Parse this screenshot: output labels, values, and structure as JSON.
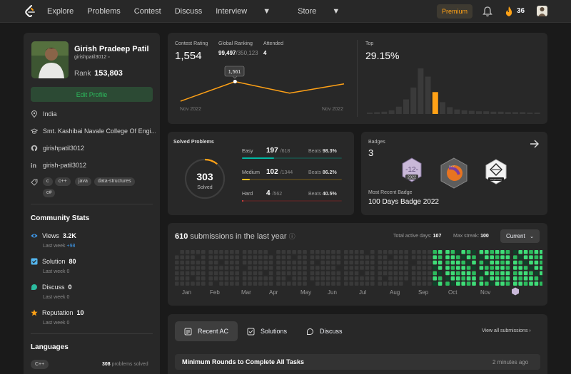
{
  "nav": {
    "links": [
      "Explore",
      "Problems",
      "Contest",
      "Discuss",
      "Interview",
      "Store"
    ],
    "premium": "Premium",
    "streak": "36",
    "icons": {
      "logo": "leetcode-logo-icon",
      "bell": "bell-icon",
      "fire": "fire-icon",
      "caret": "chevron-down-icon"
    }
  },
  "profile": {
    "name": "Girish Pradeep Patil",
    "handle": "girishpatil3012",
    "rank_label": "Rank",
    "rank": "153,803",
    "edit": "Edit Profile",
    "location": "India",
    "school": "Smt. Kashibai Navale College Of Engi...",
    "github": "girishpatil3012",
    "linkedin": "girish-patil3012",
    "skills": [
      "c",
      "c++",
      "java",
      "data-structures",
      "c#"
    ]
  },
  "community": {
    "title": "Community Stats",
    "items": [
      {
        "label": "Views",
        "value": "3.2K",
        "sub": "Last week",
        "delta": "+98",
        "color": "#3f9cf0"
      },
      {
        "label": "Solution",
        "value": "80",
        "sub": "Last week",
        "delta": "0",
        "color": "#54b7f0"
      },
      {
        "label": "Discuss",
        "value": "0",
        "sub": "Last week",
        "delta": "0",
        "color": "#2cbb9f"
      },
      {
        "label": "Reputation",
        "value": "10",
        "sub": "Last week",
        "delta": "0",
        "color": "#ffa116"
      }
    ]
  },
  "languages": {
    "title": "Languages",
    "items": [
      {
        "name": "C++",
        "count": "308",
        "suffix": "problems solved"
      }
    ]
  },
  "contest": {
    "rating_label": "Contest Rating",
    "rating": "1,554",
    "global_label": "Global Ranking",
    "global": "99,497",
    "global_total": "/350,123",
    "attended_label": "Attended",
    "attended": "4",
    "tooltip": "1,561",
    "start": "Nov 2022",
    "end": "Nov 2022",
    "top_label": "Top",
    "top": "29.15%",
    "accent": "#ffa116"
  },
  "rating_history": [
    1500,
    1561,
    1525,
    1554
  ],
  "distribution": [
    3,
    4,
    5,
    8,
    16,
    32,
    58,
    100,
    82,
    48,
    26,
    15,
    10,
    8,
    7,
    6,
    6,
    5,
    5,
    4,
    4,
    4,
    3,
    3
  ],
  "distribution_highlight": 9,
  "solved": {
    "title": "Solved Problems",
    "total": "303",
    "total_label": "Solved",
    "beats_label": "Beats",
    "rows": [
      {
        "label": "Easy",
        "count": "197",
        "total": "/618",
        "beats": "98.3%",
        "fraction": 0.319,
        "color": "#00b8a3",
        "track": "#1d4a43"
      },
      {
        "label": "Medium",
        "count": "102",
        "total": "/1344",
        "beats": "86.2%",
        "fraction": 0.076,
        "color": "#ffc01e",
        "track": "#4f4220"
      },
      {
        "label": "Hard",
        "count": "4",
        "total": "/562",
        "beats": "40.5%",
        "fraction": 0.007,
        "color": "#ef4743",
        "track": "#4a2626"
      }
    ]
  },
  "badges": {
    "title": "Badges",
    "count": "3",
    "recent_label": "Most Recent Badge",
    "recent": "100 Days Badge 2022",
    "items": [
      {
        "top": "12",
        "year": "2022"
      },
      {
        "top": "DCC",
        "year": ""
      },
      {
        "top": "Programming",
        "year": ""
      }
    ]
  },
  "heatmap": {
    "count": "610",
    "label": "submissions in the last year",
    "active_label": "Total active days:",
    "active": "107",
    "streak_label": "Max streak:",
    "streak": "100",
    "dropdown": "Current",
    "months": [
      "Jan",
      "Feb",
      "Mar",
      "Apr",
      "May",
      "Jun",
      "Jul",
      "Aug",
      "Sep",
      "Oct",
      "Nov"
    ]
  },
  "activity": {
    "tabs": [
      "Recent AC",
      "Solutions",
      "Discuss"
    ],
    "view_all": "View all submissions",
    "rows": [
      {
        "title": "Minimum Rounds to Complete All Tasks",
        "time": "2 minutes ago"
      }
    ]
  }
}
